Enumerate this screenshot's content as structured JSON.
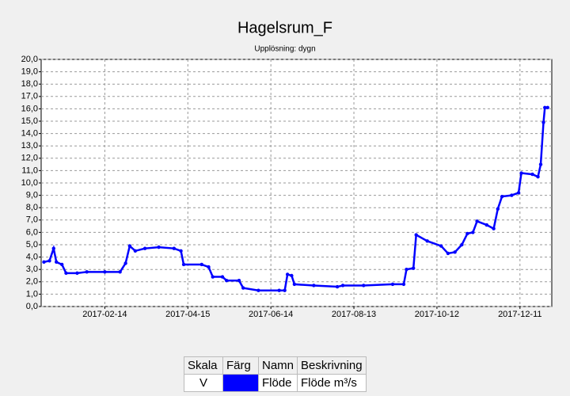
{
  "chart_data": {
    "type": "line",
    "title": "Hagelsrum_F",
    "subtitle": "Upplösning: dygn",
    "x": [
      "2017-01-01",
      "2017-01-05",
      "2017-01-08",
      "2017-01-10",
      "2017-01-14",
      "2017-01-17",
      "2017-01-25",
      "2017-02-01",
      "2017-02-14",
      "2017-02-25",
      "2017-03-01",
      "2017-03-04",
      "2017-03-08",
      "2017-03-15",
      "2017-03-25",
      "2017-04-05",
      "2017-04-10",
      "2017-04-12",
      "2017-04-25",
      "2017-04-30",
      "2017-05-03",
      "2017-05-10",
      "2017-05-13",
      "2017-05-22",
      "2017-05-25",
      "2017-06-05",
      "2017-06-20",
      "2017-06-24",
      "2017-06-26",
      "2017-06-29",
      "2017-07-01",
      "2017-07-15",
      "2017-08-01",
      "2017-08-05",
      "2017-08-20",
      "2017-09-10",
      "2017-09-18",
      "2017-09-20",
      "2017-09-25",
      "2017-09-27",
      "2017-10-05",
      "2017-10-15",
      "2017-10-20",
      "2017-10-25",
      "2017-10-30",
      "2017-11-03",
      "2017-11-07",
      "2017-11-10",
      "2017-11-17",
      "2017-11-22",
      "2017-11-25",
      "2017-11-28",
      "2017-12-05",
      "2017-12-10",
      "2017-12-12",
      "2017-12-20",
      "2017-12-24",
      "2017-12-26",
      "2017-12-28",
      "2017-12-29",
      "2017-12-31"
    ],
    "series": [
      {
        "name": "Flöde",
        "color": "#0000ff",
        "scale": "V",
        "description": "Flöde m³/s",
        "values": [
          3.6,
          3.7,
          4.7,
          3.6,
          3.4,
          2.7,
          2.7,
          2.8,
          2.8,
          2.8,
          3.5,
          4.9,
          4.5,
          4.7,
          4.8,
          4.7,
          4.5,
          3.4,
          3.4,
          3.2,
          2.4,
          2.4,
          2.1,
          2.1,
          1.5,
          1.3,
          1.3,
          1.3,
          2.6,
          2.5,
          1.8,
          1.7,
          1.6,
          1.7,
          1.7,
          1.8,
          1.8,
          3.0,
          3.1,
          5.8,
          5.3,
          4.9,
          4.3,
          4.4,
          5.0,
          5.9,
          6.0,
          6.9,
          6.6,
          6.3,
          7.9,
          8.9,
          9.0,
          9.2,
          10.8,
          10.7,
          10.5,
          11.5,
          14.9,
          16.1,
          16.1
        ]
      }
    ],
    "xlim": [
      "2016-12-30",
      "2018-01-03"
    ],
    "xticks": [
      "2017-02-14",
      "2017-04-15",
      "2017-06-14",
      "2017-08-13",
      "2017-10-12",
      "2017-12-11"
    ],
    "ylim": [
      0,
      20
    ],
    "yticks": [
      {
        "value": 0,
        "label": "0,0"
      },
      {
        "value": 1,
        "label": "1,0"
      },
      {
        "value": 2,
        "label": "2,0"
      },
      {
        "value": 3,
        "label": "3,0"
      },
      {
        "value": 4,
        "label": "4,0"
      },
      {
        "value": 5,
        "label": "5,0"
      },
      {
        "value": 6,
        "label": "6,0"
      },
      {
        "value": 7,
        "label": "7,0"
      },
      {
        "value": 8,
        "label": "8,0"
      },
      {
        "value": 9,
        "label": "9,0"
      },
      {
        "value": 10,
        "label": "10,0"
      },
      {
        "value": 11,
        "label": "11,0"
      },
      {
        "value": 12,
        "label": "12,0"
      },
      {
        "value": 13,
        "label": "13,0"
      },
      {
        "value": 14,
        "label": "14,0"
      },
      {
        "value": 15,
        "label": "15,0"
      },
      {
        "value": 16,
        "label": "16,0"
      },
      {
        "value": 17,
        "label": "17,0"
      },
      {
        "value": 18,
        "label": "18,0"
      },
      {
        "value": 19,
        "label": "19,0"
      },
      {
        "value": 20,
        "label": "20,0"
      }
    ],
    "grid": true,
    "legend_headers": [
      "Skala",
      "Färg",
      "Namn",
      "Beskrivning"
    ]
  }
}
